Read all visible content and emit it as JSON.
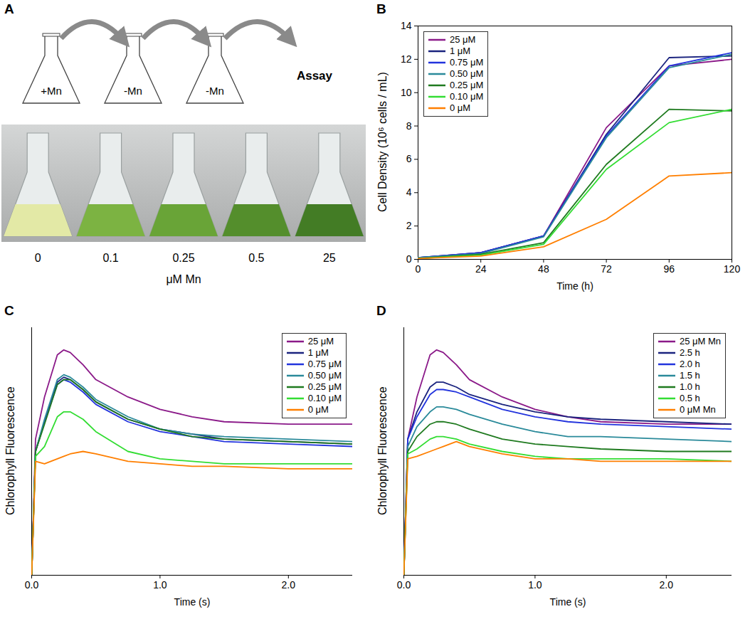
{
  "panel_a": {
    "panel": "A",
    "diagram": {
      "flasks": [
        "+Mn",
        "-Mn",
        "-Mn"
      ],
      "end": "Assay"
    },
    "photo": {
      "labels": [
        "0",
        "0.1",
        "0.25",
        "0.5",
        "25"
      ],
      "caption": "μM Mn"
    }
  },
  "chart_data": [
    {
      "panel": "B",
      "type": "line",
      "xlabel": "Time (h)",
      "ylabel": "Cell Density (10⁶ cells / mL)",
      "x": [
        0,
        24,
        48,
        72,
        96,
        120
      ],
      "xlim": [
        0,
        120
      ],
      "xticks": [
        0,
        24,
        48,
        72,
        96,
        120
      ],
      "ylim": [
        0,
        14
      ],
      "yticks": [
        0,
        2,
        4,
        6,
        8,
        10,
        12,
        14
      ],
      "grid": false,
      "legend": "top-left",
      "series": [
        {
          "name": "25 μM",
          "color": "#8b1a89",
          "values": [
            0.1,
            0.4,
            1.4,
            7.9,
            11.6,
            12.0
          ]
        },
        {
          "name": "1 μM",
          "color": "#1a237e",
          "values": [
            0.1,
            0.4,
            1.4,
            7.5,
            12.1,
            12.2
          ]
        },
        {
          "name": "0.75 μM",
          "color": "#2233dd",
          "values": [
            0.1,
            0.4,
            1.4,
            7.4,
            11.6,
            12.4
          ]
        },
        {
          "name": "0.50 μM",
          "color": "#2a8a9a",
          "values": [
            0.1,
            0.35,
            1.35,
            7.3,
            11.5,
            12.3
          ]
        },
        {
          "name": "0.25 μM",
          "color": "#1f7a1f",
          "values": [
            0.05,
            0.3,
            1.0,
            5.7,
            9.0,
            8.9
          ]
        },
        {
          "name": "0.10 μM",
          "color": "#33dd33",
          "values": [
            0.05,
            0.25,
            0.9,
            5.4,
            8.2,
            9.0
          ]
        },
        {
          "name": "0 μM",
          "color": "#ff7f00",
          "values": [
            0.05,
            0.2,
            0.75,
            2.4,
            5.0,
            5.2
          ]
        }
      ]
    },
    {
      "panel": "C",
      "type": "line",
      "xlabel": "Time (s)",
      "ylabel": "Chlorophyll Fluorescence",
      "x": [
        0,
        0.03,
        0.1,
        0.2,
        0.25,
        0.3,
        0.4,
        0.5,
        0.75,
        1,
        1.25,
        1.5,
        2,
        2.5
      ],
      "xlim": [
        0,
        2.5
      ],
      "xticks": [
        0,
        1,
        2
      ],
      "ylim": [
        0,
        100
      ],
      "tick_labels": "x",
      "grid": false,
      "legend": "top-right",
      "series": [
        {
          "name": "25 μM",
          "color": "#8b1a89",
          "values": [
            0,
            55,
            72,
            89,
            91,
            90,
            85,
            79,
            72,
            67,
            64,
            62,
            61,
            61
          ]
        },
        {
          "name": "1 μM",
          "color": "#1a237e",
          "values": [
            0,
            50,
            62,
            78,
            80,
            79,
            75,
            70,
            63,
            59,
            57,
            55,
            54,
            53
          ]
        },
        {
          "name": "0.75 μM",
          "color": "#2233dd",
          "values": [
            0,
            50,
            62,
            77,
            79,
            78,
            74,
            69,
            62,
            58,
            56,
            54,
            53,
            52
          ]
        },
        {
          "name": "0.50 μM",
          "color": "#2a8a9a",
          "values": [
            0,
            50,
            63,
            79,
            81,
            80,
            76,
            71,
            64,
            59,
            57,
            56,
            55,
            54
          ]
        },
        {
          "name": "0.25 μM",
          "color": "#1f7a1f",
          "values": [
            0,
            50,
            61,
            77,
            79,
            79,
            75,
            70,
            63,
            59,
            56,
            55,
            54,
            53
          ]
        },
        {
          "name": "0.10 μM",
          "color": "#33dd33",
          "values": [
            0,
            48,
            52,
            64,
            66,
            66,
            63,
            58,
            50,
            47,
            46,
            45,
            45,
            45
          ]
        },
        {
          "name": "0 μM",
          "color": "#ff7f00",
          "values": [
            0,
            46,
            45,
            47,
            48,
            49,
            50,
            49,
            46,
            45,
            44,
            44,
            43,
            43
          ]
        }
      ]
    },
    {
      "panel": "D",
      "type": "line",
      "xlabel": "Time (s)",
      "ylabel": "Chlorophyll Fluorescence",
      "x": [
        0,
        0.03,
        0.1,
        0.2,
        0.25,
        0.3,
        0.4,
        0.5,
        0.75,
        1,
        1.25,
        1.5,
        2,
        2.5
      ],
      "xlim": [
        0,
        2.5
      ],
      "xticks": [
        0,
        1,
        2
      ],
      "ylim": [
        0,
        100
      ],
      "tick_labels": "x",
      "grid": false,
      "legend": "top-right",
      "series": [
        {
          "name": "25 μM Mn",
          "color": "#8b1a89",
          "values": [
            0,
            55,
            72,
            89,
            91,
            90,
            85,
            79,
            72,
            67,
            64,
            62,
            61,
            61
          ]
        },
        {
          "name": "2.5 h",
          "color": "#1a237e",
          "values": [
            0,
            55,
            66,
            76,
            78,
            78,
            76,
            73,
            69,
            66,
            64,
            63,
            62,
            61
          ]
        },
        {
          "name": "2.0 h",
          "color": "#2233dd",
          "values": [
            0,
            55,
            64,
            73,
            75,
            75,
            74,
            72,
            67,
            64,
            62,
            61,
            60,
            59
          ]
        },
        {
          "name": "1.5 h",
          "color": "#2a8a9a",
          "values": [
            0,
            52,
            60,
            66,
            68,
            68,
            67,
            65,
            61,
            58,
            56,
            56,
            55,
            54
          ]
        },
        {
          "name": "1.0 h",
          "color": "#1f7a1f",
          "values": [
            0,
            50,
            56,
            61,
            62,
            62,
            61,
            59,
            55,
            53,
            52,
            51,
            50,
            50
          ]
        },
        {
          "name": "0.5 h",
          "color": "#33dd33",
          "values": [
            0,
            49,
            51,
            55,
            56,
            56,
            55,
            53,
            50,
            48,
            47,
            47,
            47,
            46
          ]
        },
        {
          "name": "0 μM Mn",
          "color": "#ff7f00",
          "values": [
            0,
            47,
            48,
            50,
            51,
            52,
            54,
            52,
            49,
            47,
            47,
            46,
            46,
            46
          ]
        }
      ]
    }
  ]
}
